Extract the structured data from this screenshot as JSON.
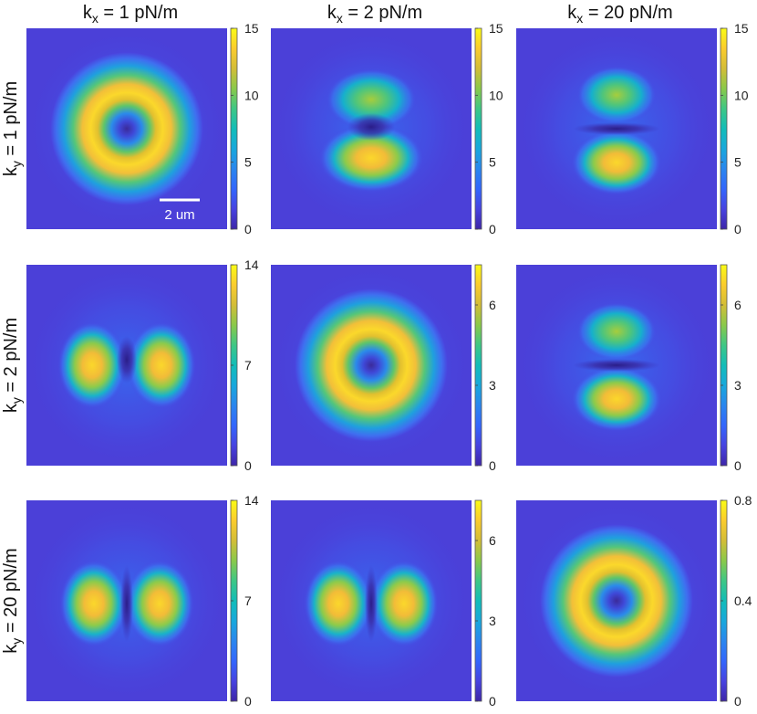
{
  "chart_data": {
    "type": "heatmap",
    "colormap": "parula",
    "col_titles": [
      {
        "base": "k",
        "sub": "x",
        "rest": " = 1 pN/m"
      },
      {
        "base": "k",
        "sub": "x",
        "rest": " = 2 pN/m"
      },
      {
        "base": "k",
        "sub": "x",
        "rest": " = 20 pN/m"
      }
    ],
    "row_titles": [
      {
        "base": "k",
        "sub": "y",
        "rest": " = 1 pN/m"
      },
      {
        "base": "k",
        "sub": "y",
        "rest": " = 2 pN/m"
      },
      {
        "base": "k",
        "sub": "y",
        "rest": " = 20 pN/m"
      }
    ],
    "scale_bar": {
      "label": "2 um"
    },
    "panels": [
      {
        "row": 0,
        "col": 0,
        "pattern": "ring",
        "clim": [
          0,
          15
        ],
        "ticks": [
          "0",
          "5",
          "10",
          "15"
        ]
      },
      {
        "row": 0,
        "col": 1,
        "pattern": "split-y-ring",
        "clim": [
          0,
          15
        ],
        "ticks": [
          "0",
          "5",
          "10",
          "15"
        ]
      },
      {
        "row": 0,
        "col": 2,
        "pattern": "split-y",
        "clim": [
          0,
          15
        ],
        "ticks": [
          "0",
          "5",
          "10",
          "15"
        ]
      },
      {
        "row": 1,
        "col": 0,
        "pattern": "split-x-ring",
        "clim": [
          0,
          14
        ],
        "ticks": [
          "0",
          "7",
          "14"
        ]
      },
      {
        "row": 1,
        "col": 1,
        "pattern": "ring",
        "clim": [
          0,
          7.5
        ],
        "ticks": [
          "0",
          "3",
          "6"
        ]
      },
      {
        "row": 1,
        "col": 2,
        "pattern": "split-y",
        "clim": [
          0,
          7.5
        ],
        "ticks": [
          "0",
          "3",
          "6"
        ]
      },
      {
        "row": 2,
        "col": 0,
        "pattern": "split-x",
        "clim": [
          0,
          14
        ],
        "ticks": [
          "0",
          "7",
          "14"
        ]
      },
      {
        "row": 2,
        "col": 1,
        "pattern": "split-x",
        "clim": [
          0,
          7.5
        ],
        "ticks": [
          "0",
          "3",
          "6"
        ]
      },
      {
        "row": 2,
        "col": 2,
        "pattern": "ring",
        "clim": [
          0,
          0.8
        ],
        "ticks": [
          "0",
          "0.4",
          "0.8"
        ]
      }
    ]
  }
}
